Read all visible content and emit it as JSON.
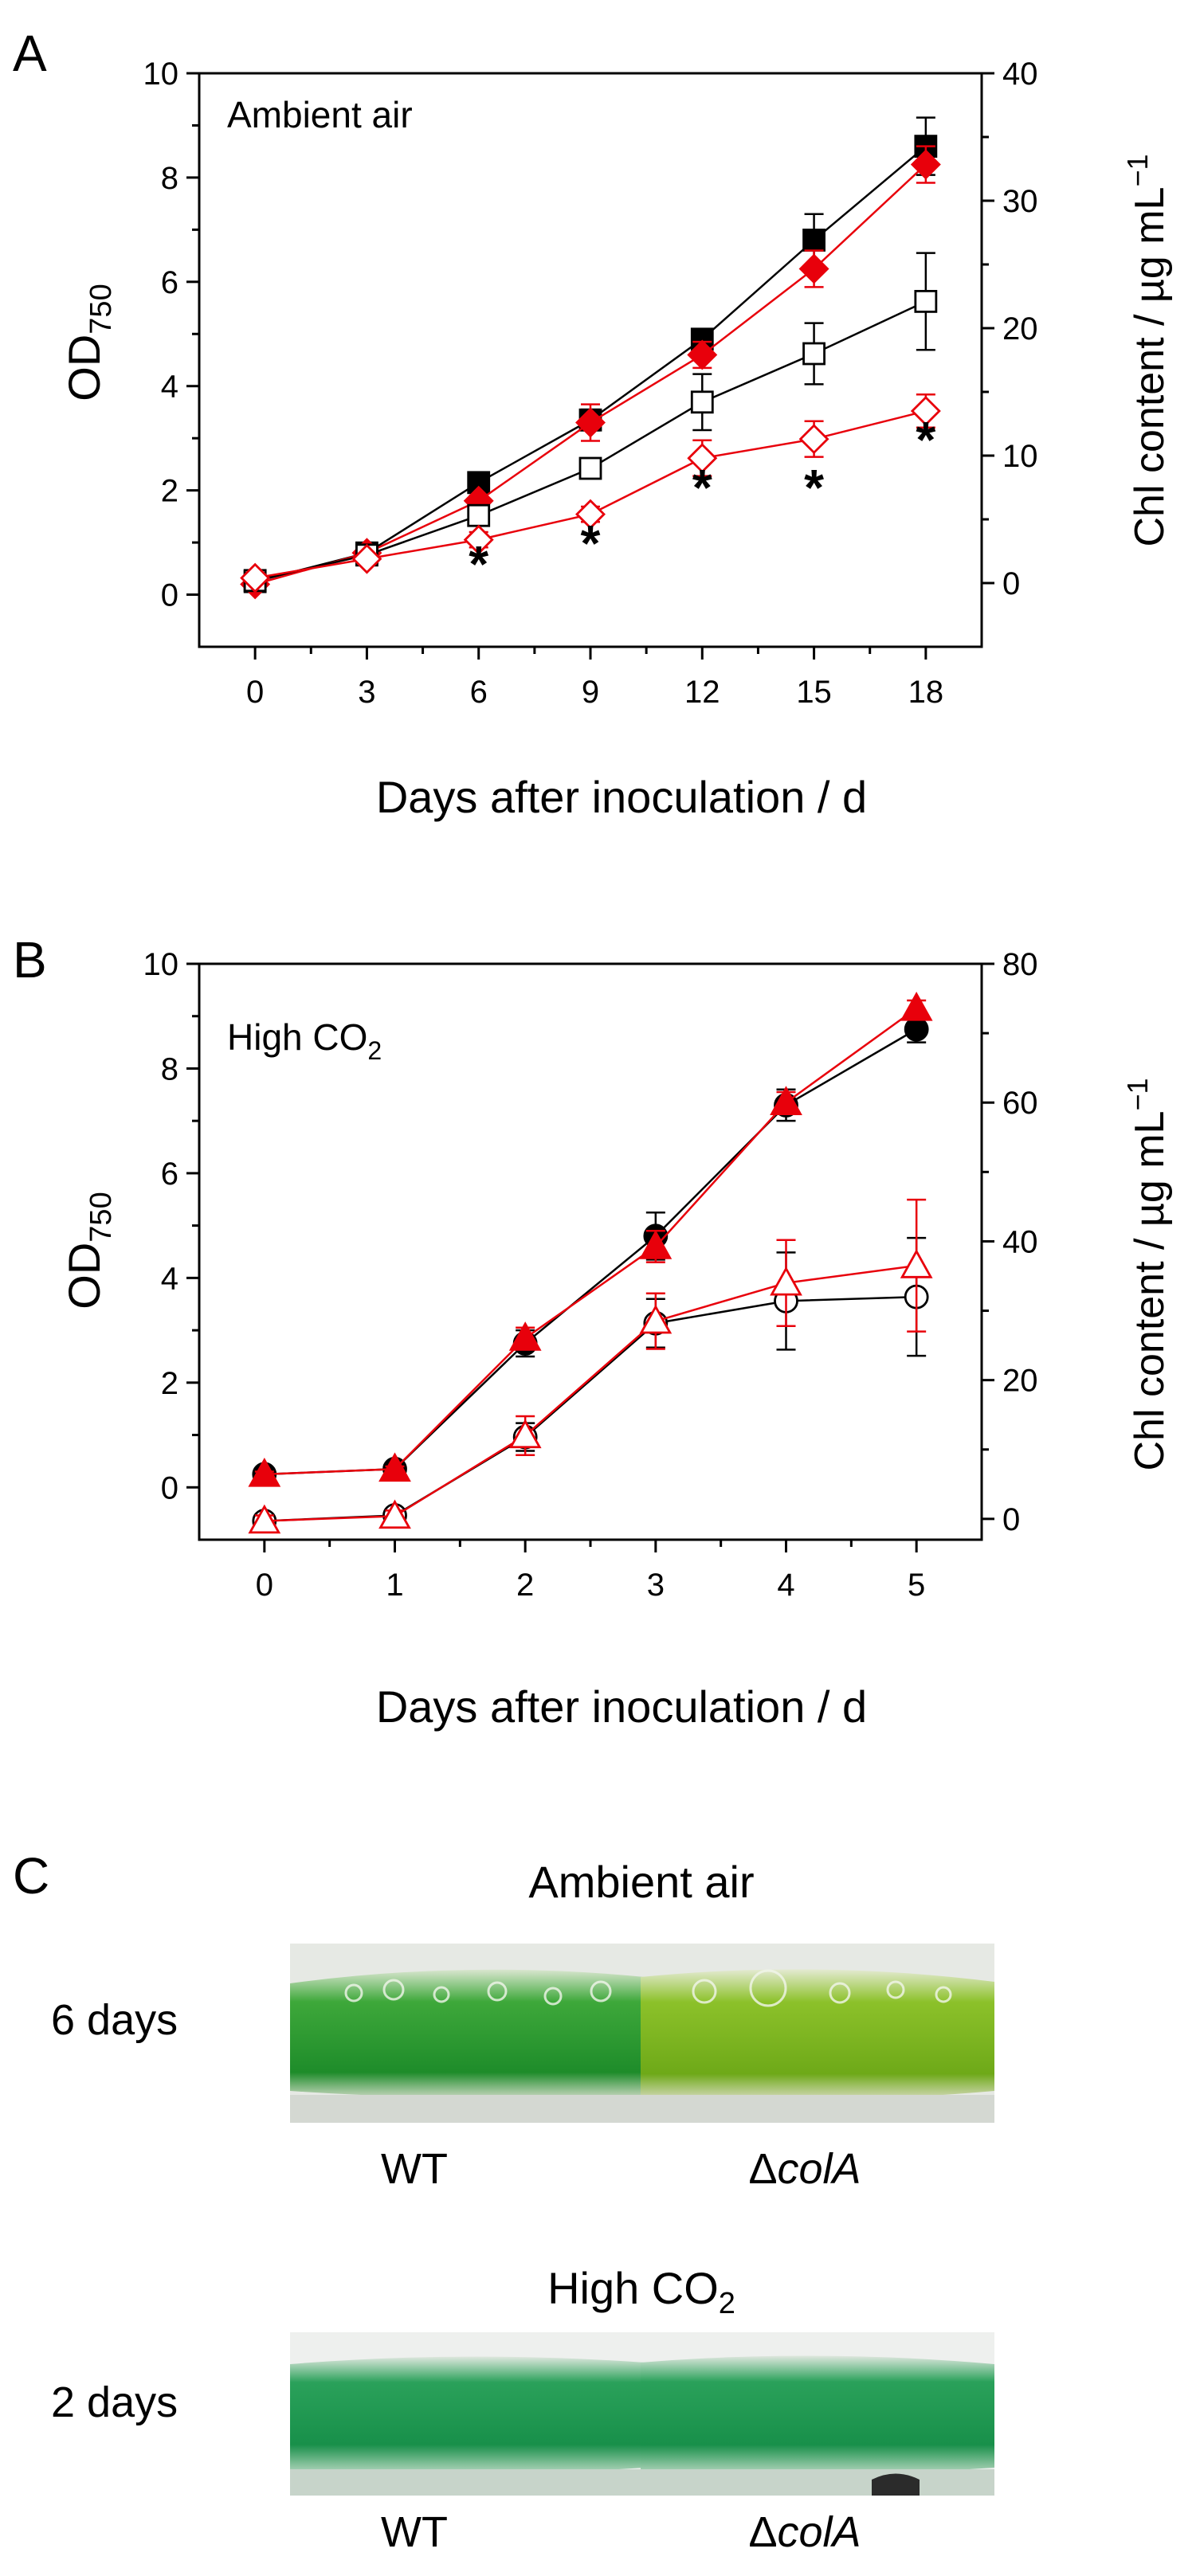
{
  "panels": {
    "A": {
      "letter": "A",
      "annotation": "Ambient air",
      "xlabel": "Days after inoculation / d",
      "ylabel_left_main": "OD",
      "ylabel_left_sub": "750",
      "ylabel_right": "Chl content / µg mL",
      "ylabel_right_sup": "−1",
      "significance_marker": "*"
    },
    "B": {
      "letter": "B",
      "annotation_main": "High CO",
      "annotation_sub": "2",
      "xlabel": "Days after inoculation / d",
      "ylabel_left_main": "OD",
      "ylabel_left_sub": "750",
      "ylabel_right": "Chl content / µg mL",
      "ylabel_right_sup": "−1"
    },
    "C": {
      "letter": "C",
      "ambient_title": "Ambient air",
      "ambient_row": "6 days",
      "high_title_main": "High CO",
      "high_title_sub": "2",
      "high_row": "2 days",
      "wt_label": "WT",
      "mutant_prefix": "Δ",
      "mutant_gene": "colA"
    }
  },
  "colors": {
    "wt": "#000000",
    "mutant": "#e8000b",
    "culture_wt": "#2f9e2f",
    "culture_mutant": "#7fbf1e",
    "culture_high": "#1fa050"
  },
  "chart_data": [
    {
      "panel": "A",
      "type": "line",
      "title": "Ambient air",
      "xlabel": "Days after inoculation / d",
      "ylabel": "OD750",
      "y2label": "Chl content / µg mL−1",
      "x": [
        0,
        3,
        6,
        9,
        12,
        15,
        18
      ],
      "xticks": [
        0,
        3,
        6,
        9,
        12,
        15,
        18
      ],
      "xlim": [
        -1.5,
        19.5
      ],
      "ylim": [
        -1,
        10
      ],
      "yticks": [
        0,
        2,
        4,
        6,
        8,
        10
      ],
      "y2lim": [
        -5,
        40
      ],
      "y2ticks": [
        0,
        10,
        20,
        30,
        40
      ],
      "significance_days": [
        6,
        9,
        12,
        15,
        18
      ],
      "series": [
        {
          "name": "WT OD750",
          "axis": "left",
          "marker": "square",
          "filled": true,
          "color": "#000000",
          "values": [
            0.25,
            0.8,
            2.15,
            3.35,
            4.9,
            6.8,
            8.6
          ],
          "errors": [
            0.05,
            0.05,
            0.1,
            0.2,
            0.2,
            0.5,
            0.55
          ]
        },
        {
          "name": "ΔcolA OD750",
          "axis": "left",
          "marker": "diamond",
          "filled": true,
          "color": "#e8000b",
          "values": [
            0.2,
            0.8,
            1.8,
            3.3,
            4.6,
            6.25,
            8.25
          ],
          "errors": [
            0.05,
            0.05,
            0.1,
            0.35,
            0.25,
            0.35,
            0.35
          ]
        },
        {
          "name": "WT Chl",
          "axis": "right",
          "marker": "square",
          "filled": false,
          "color": "#000000",
          "values": [
            0.2,
            2.2,
            5.3,
            9.0,
            14.2,
            18.0,
            22.1
          ],
          "errors": [
            0.3,
            0.4,
            0.6,
            0.6,
            2.2,
            2.4,
            3.8
          ]
        },
        {
          "name": "ΔcolA Chl",
          "axis": "right",
          "marker": "diamond",
          "filled": false,
          "color": "#e8000b",
          "values": [
            0.4,
            1.9,
            3.4,
            5.4,
            9.8,
            11.3,
            13.5
          ],
          "errors": [
            0.3,
            0.4,
            0.6,
            0.6,
            1.4,
            1.4,
            1.3
          ]
        }
      ]
    },
    {
      "panel": "B",
      "type": "line",
      "title": "High CO2",
      "xlabel": "Days after inoculation / d",
      "ylabel": "OD750",
      "y2label": "Chl content / µg mL−1",
      "x": [
        0,
        1,
        2,
        3,
        4,
        5
      ],
      "xticks": [
        0,
        1,
        2,
        3,
        4,
        5
      ],
      "xlim": [
        -0.5,
        5.5
      ],
      "ylim": [
        -1,
        10
      ],
      "yticks": [
        0,
        2,
        4,
        6,
        8,
        10
      ],
      "y2lim": [
        -3,
        80
      ],
      "y2ticks": [
        0,
        20,
        40,
        60,
        80
      ],
      "series": [
        {
          "name": "WT OD750",
          "axis": "left",
          "marker": "circle",
          "filled": true,
          "color": "#000000",
          "values": [
            0.25,
            0.35,
            2.75,
            4.8,
            7.3,
            8.75
          ],
          "errors": [
            0.05,
            0.05,
            0.25,
            0.45,
            0.3,
            0.25
          ]
        },
        {
          "name": "ΔcolA OD750",
          "axis": "left",
          "marker": "triangle",
          "filled": true,
          "color": "#e8000b",
          "values": [
            0.25,
            0.35,
            2.85,
            4.6,
            7.35,
            9.15
          ],
          "errors": [
            0.05,
            0.05,
            0.2,
            0.3,
            0.2,
            0.15
          ]
        },
        {
          "name": "WT Chl",
          "axis": "right",
          "marker": "circle",
          "filled": false,
          "color": "#000000",
          "values": [
            -0.3,
            0.5,
            11.8,
            28.2,
            31.4,
            32.0
          ],
          "errors": [
            0.8,
            0.8,
            2.0,
            3.5,
            7.0,
            8.5
          ]
        },
        {
          "name": "ΔcolA Chl",
          "axis": "right",
          "marker": "triangle",
          "filled": false,
          "color": "#e8000b",
          "values": [
            -0.3,
            0.4,
            12.0,
            28.5,
            34.0,
            36.5
          ],
          "errors": [
            0.8,
            0.8,
            2.8,
            4.0,
            6.2,
            9.5
          ]
        }
      ]
    }
  ]
}
